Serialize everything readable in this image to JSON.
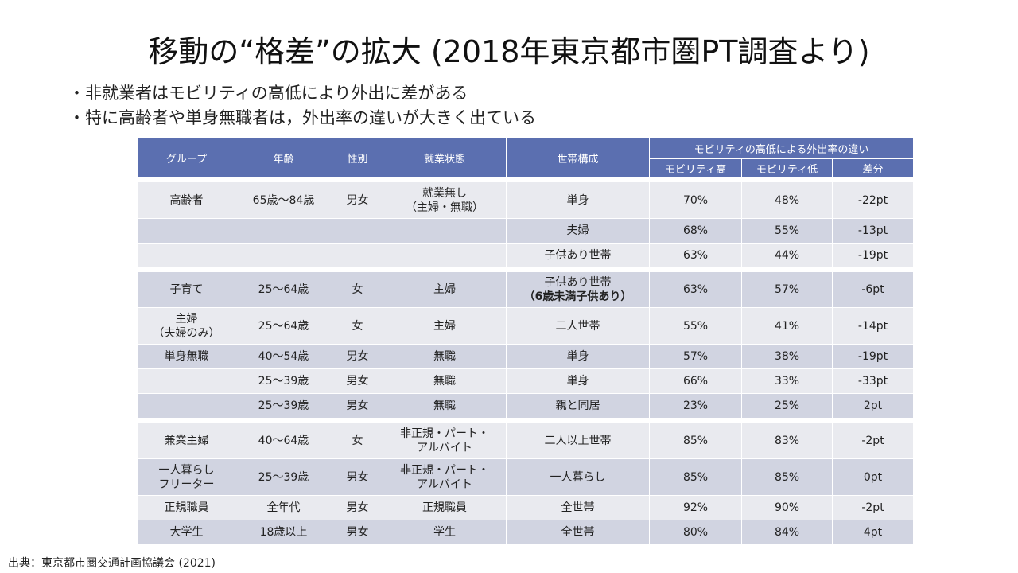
{
  "title": "移動の“格差”の拡大 (2018年東京都市圏PT調査より)",
  "bullets": [
    "・非就業者はモビリティの高低により外出に差がある",
    "・特に高齢者や単身無職者は，外出率の違いが大きく出ている"
  ],
  "table": {
    "headers": {
      "group": "グループ",
      "age": "年齢",
      "sex": "性別",
      "employment": "就業状態",
      "household": "世帯構成",
      "diff_group": "モビリティの高低による外出率の違い",
      "high": "モビリティ高",
      "low": "モビリティ低",
      "diff": "差分"
    },
    "rows": [
      {
        "group": "高齢者",
        "age": "65歳〜84歳",
        "sex": "男女",
        "employment": "就業無し\n（主婦・無職）",
        "household": "単身",
        "high": "70%",
        "low": "48%",
        "diff": "-22pt"
      },
      {
        "group": "",
        "age": "",
        "sex": "",
        "employment": "",
        "household": "夫婦",
        "high": "68%",
        "low": "55%",
        "diff": "-13pt"
      },
      {
        "group": "",
        "age": "",
        "sex": "",
        "employment": "",
        "household": "子供あり世帯",
        "high": "63%",
        "low": "44%",
        "diff": "-19pt"
      },
      {
        "group": "子育て",
        "age": "25〜64歳",
        "sex": "女",
        "employment": "主婦",
        "household": "子供あり世帯",
        "household2": "（6歳未満子供あり）",
        "high": "63%",
        "low": "57%",
        "diff": "-6pt"
      },
      {
        "group": "主婦\n（夫婦のみ）",
        "age": "25〜64歳",
        "sex": "女",
        "employment": "主婦",
        "household": "二人世帯",
        "high": "55%",
        "low": "41%",
        "diff": "-14pt"
      },
      {
        "group": "単身無職",
        "age": "40〜54歳",
        "sex": "男女",
        "employment": "無職",
        "household": "単身",
        "high": "57%",
        "low": "38%",
        "diff": "-19pt"
      },
      {
        "group": "",
        "age": "25〜39歳",
        "sex": "男女",
        "employment": "無職",
        "household": "単身",
        "high": "66%",
        "low": "33%",
        "diff": "-33pt"
      },
      {
        "group": "",
        "age": "25〜39歳",
        "sex": "男女",
        "employment": "無職",
        "household": "親と同居",
        "high": "23%",
        "low": "25%",
        "diff": "2pt"
      },
      {
        "group": "兼業主婦",
        "age": "40〜64歳",
        "sex": "女",
        "employment": "非正規・パート・\nアルバイト",
        "household": "二人以上世帯",
        "high": "85%",
        "low": "83%",
        "diff": "-2pt"
      },
      {
        "group": "一人暮らし\nフリーター",
        "age": "25〜39歳",
        "sex": "男女",
        "employment": "非正規・パート・\nアルバイト",
        "household": "一人暮らし",
        "high": "85%",
        "low": "85%",
        "diff": "0pt"
      },
      {
        "group": "正規職員",
        "age": "全年代",
        "sex": "男女",
        "employment": "正規職員",
        "household": "全世帯",
        "high": "92%",
        "low": "90%",
        "diff": "-2pt"
      },
      {
        "group": "大学生",
        "age": "18歳以上",
        "sex": "男女",
        "employment": "学生",
        "household": "全世帯",
        "high": "80%",
        "low": "84%",
        "diff": "4pt"
      }
    ]
  },
  "source": "出典：東京都市圏交通計画協議会 (2021)",
  "colors": {
    "header_bg": "#5b6fb0",
    "row_light": "#e9eaef",
    "row_dark": "#d1d4e1",
    "pink": "#ea7fa2",
    "blue": "#3a3acc",
    "teal": "#7aaba7",
    "purple": "#8a2fb0",
    "orange": "#ef8c3c",
    "green": "#2aa45e",
    "red": "#e0262e",
    "salmon": "#f27b6e"
  }
}
